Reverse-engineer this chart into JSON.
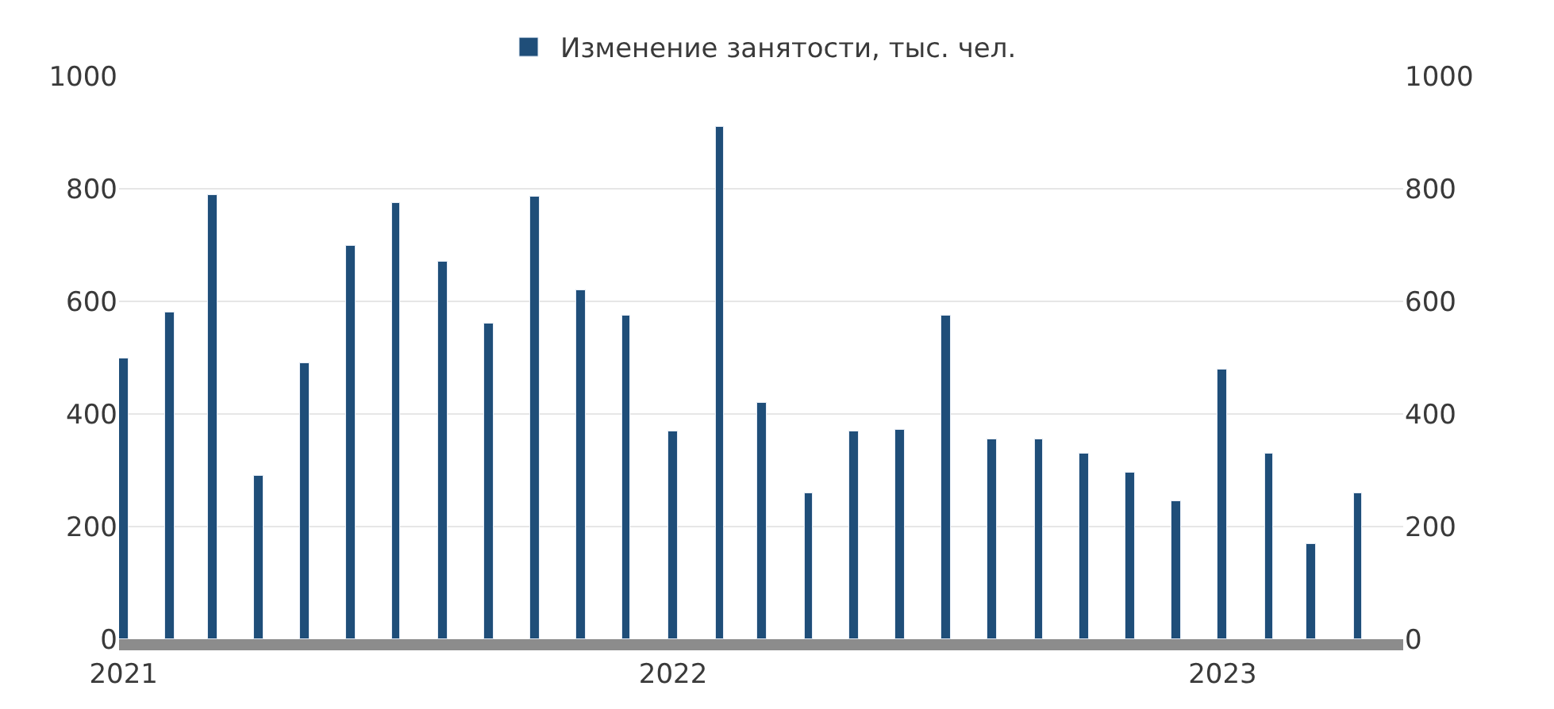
{
  "chart_data": {
    "type": "bar",
    "x": [
      "2021-01",
      "2021-02",
      "2021-03",
      "2021-04",
      "2021-05",
      "2021-06",
      "2021-07",
      "2021-08",
      "2021-09",
      "2021-10",
      "2021-11",
      "2021-12",
      "2022-01",
      "2022-02",
      "2022-03",
      "2022-04",
      "2022-05",
      "2022-06",
      "2022-07",
      "2022-08",
      "2022-09",
      "2022-10",
      "2022-11",
      "2022-12",
      "2023-01",
      "2023-02",
      "2023-03",
      "2023-04"
    ],
    "series": [
      {
        "name": "Изменение занятости, тыс. чел.",
        "color": "#1f4e79",
        "values": [
          500,
          580,
          790,
          290,
          490,
          700,
          775,
          670,
          560,
          785,
          620,
          575,
          370,
          910,
          420,
          260,
          370,
          373,
          575,
          355,
          355,
          330,
          295,
          245,
          478,
          330,
          170,
          260
        ]
      }
    ],
    "xlim": [
      "2020-12-29",
      "2023-05-01"
    ],
    "xticks": [
      {
        "value": "2021-01",
        "label": "2021"
      },
      {
        "value": "2022-01",
        "label": "2022"
      },
      {
        "value": "2023-01",
        "label": "2023"
      }
    ],
    "ylim": [
      0,
      1000
    ],
    "yticks": [
      0,
      200,
      400,
      600,
      800,
      1000
    ],
    "y2lim": [
      0,
      1000
    ],
    "y2ticks": [
      0,
      200,
      400,
      600,
      800,
      1000
    ],
    "grid": "y",
    "legend": "top"
  }
}
